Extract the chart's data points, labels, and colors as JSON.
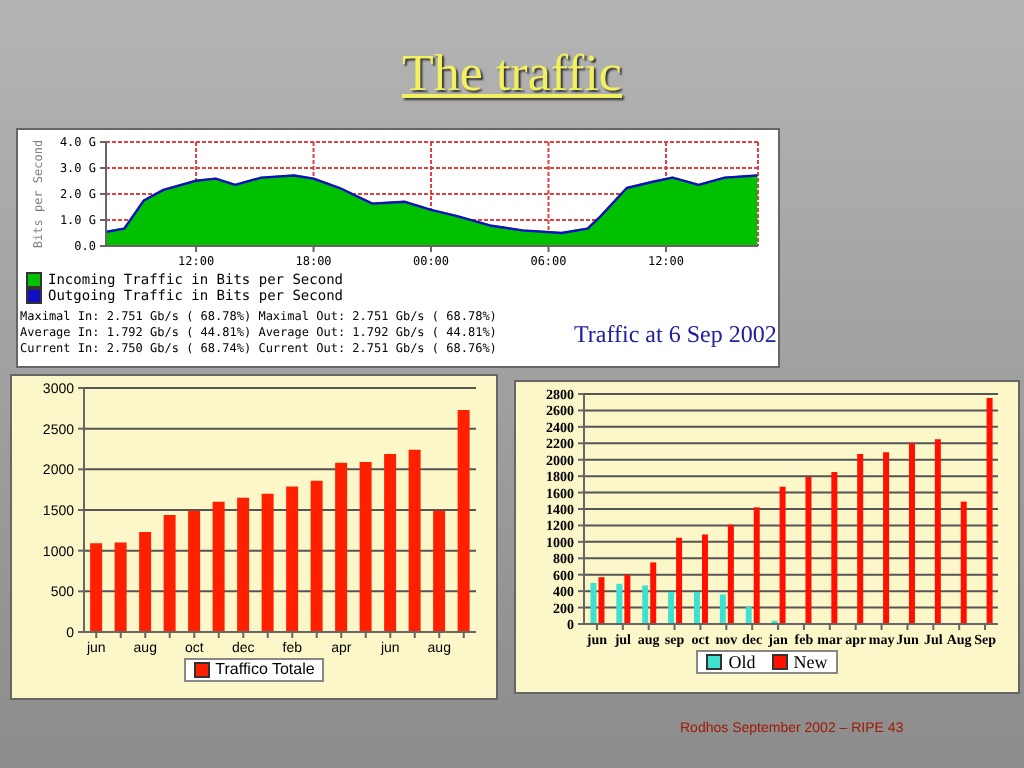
{
  "chart_data": [
    {
      "type": "area",
      "title": "The traffic",
      "ylabel": "Bits per Second",
      "x": [
        "2002-09-05T07:26",
        "2002-09-05T08:20",
        "2002-09-05T09:20",
        "2002-09-05T10:20",
        "2002-09-05T12:00",
        "2002-09-05T13:00",
        "2002-09-05T14:00",
        "2002-09-05T15:20",
        "2002-09-05T17:00",
        "2002-09-05T18:00",
        "2002-09-05T19:20",
        "2002-09-05T21:00",
        "2002-09-05T22:40",
        "2002-09-06T00:00",
        "2002-09-06T01:20",
        "2002-09-06T03:00",
        "2002-09-06T04:40",
        "2002-09-06T06:40",
        "2002-09-06T08:00",
        "2002-09-06T08:40",
        "2002-09-06T10:00",
        "2002-09-06T11:20",
        "2002-09-06T12:20",
        "2002-09-06T13:40",
        "2002-09-06T15:00",
        "2002-09-06T16:40"
      ],
      "series": [
        {
          "name": "Incoming Traffic in Bits per Second",
          "color": "#00c000",
          "values": [
            0.55,
            0.67,
            1.75,
            2.16,
            2.51,
            2.59,
            2.35,
            2.63,
            2.71,
            2.59,
            2.23,
            1.63,
            1.7,
            1.39,
            1.15,
            0.79,
            0.6,
            0.5,
            0.67,
            1.15,
            2.23,
            2.47,
            2.63,
            2.35,
            2.63,
            2.71
          ]
        },
        {
          "name": "Outgoing Traffic in Bits per Second",
          "color": "#1010c0",
          "type": "line",
          "values": [
            0.55,
            0.67,
            1.75,
            2.16,
            2.51,
            2.59,
            2.35,
            2.63,
            2.71,
            2.59,
            2.23,
            1.63,
            1.7,
            1.39,
            1.15,
            0.79,
            0.6,
            0.5,
            0.67,
            1.15,
            2.23,
            2.47,
            2.63,
            2.35,
            2.63,
            2.71
          ]
        }
      ],
      "xlim": [
        "2002-09-05T07:24",
        "2002-09-06T16:42"
      ],
      "xticks": [
        {
          "value": "2002-09-05T12:00",
          "label": "12:00"
        },
        {
          "value": "2002-09-05T18:00",
          "label": "18:00"
        },
        {
          "value": "2002-09-06T00:00",
          "label": "00:00"
        },
        {
          "value": "2002-09-06T06:00",
          "label": "06:00"
        },
        {
          "value": "2002-09-06T12:00",
          "label": "12:00"
        }
      ],
      "ylim": [
        0,
        4
      ],
      "yticks": [
        {
          "value": 0,
          "label": "0.0"
        },
        {
          "value": 1,
          "label": "1.0 G"
        },
        {
          "value": 2,
          "label": "2.0 G"
        },
        {
          "value": 3,
          "label": "3.0 G"
        },
        {
          "value": 4,
          "label": "4.0 G"
        }
      ],
      "grid": true,
      "legend": "bottom left",
      "annotations": [
        "Maximal In: 2.751 Gb/s ( 68.78%) Maximal Out: 2.751 Gb/s ( 68.78%)",
        "Average In: 1.792 Gb/s ( 44.81%) Average Out: 1.792 Gb/s ( 44.81%)",
        "Current In: 2.750 Gb/s ( 68.74%) Current Out: 2.751 Gb/s ( 68.76%)",
        "Traffic at 6 Sep 2002"
      ]
    },
    {
      "type": "bar",
      "categories": [
        "jun",
        null,
        "aug",
        null,
        "oct",
        null,
        "dec",
        null,
        "feb",
        null,
        "apr",
        null,
        "jun",
        null,
        "aug",
        null
      ],
      "series": [
        {
          "name": "Traffico Totale",
          "color": "#ff2000",
          "values": [
            1090,
            1100,
            1230,
            1440,
            1490,
            1600,
            1650,
            1700,
            1790,
            1860,
            2080,
            2090,
            2190,
            2240,
            1490,
            2730
          ]
        }
      ],
      "ylim": [
        0,
        3000
      ],
      "yticks": [
        0,
        500,
        1000,
        1500,
        2000,
        2500,
        3000
      ],
      "grid": "y",
      "legend": "bottom"
    },
    {
      "type": "bar",
      "categories": [
        "jun",
        "jul",
        "aug",
        "sep",
        "oct",
        "nov",
        "dec",
        "jan",
        "feb",
        "mar",
        "apr",
        "may",
        "Jun",
        "Jul",
        "Aug",
        "Sep"
      ],
      "series": [
        {
          "name": "Old",
          "color": "#40e0d0",
          "values": [
            500,
            490,
            470,
            390,
            390,
            360,
            210,
            40,
            0,
            0,
            0,
            0,
            0,
            0,
            0,
            0
          ]
        },
        {
          "name": "New",
          "color": "#ff1000",
          "values": [
            570,
            600,
            750,
            1050,
            1090,
            1210,
            1420,
            1670,
            1790,
            1850,
            2070,
            2090,
            2200,
            2250,
            1490,
            2750
          ]
        }
      ],
      "ylim": [
        0,
        2800
      ],
      "yticks": [
        0,
        200,
        400,
        600,
        800,
        1000,
        1200,
        1400,
        1600,
        1800,
        2000,
        2200,
        2400,
        2600,
        2800
      ],
      "grid": "y",
      "legend": "bottom",
      "annotations": [
        "Rodhos September 2002 – RIPE 43"
      ]
    }
  ]
}
